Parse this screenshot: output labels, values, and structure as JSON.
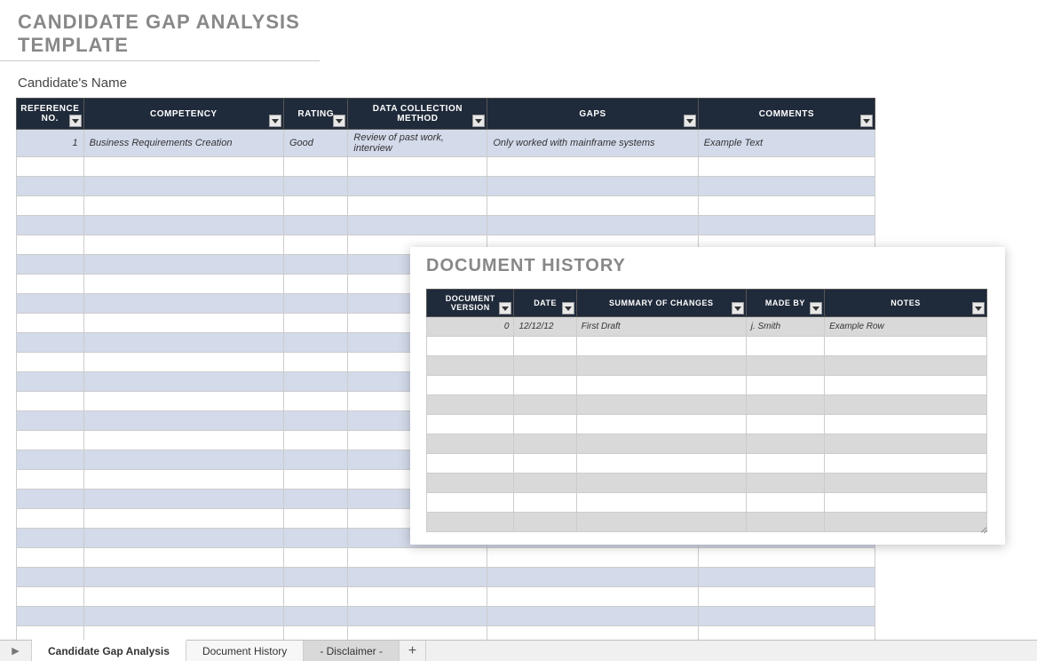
{
  "page": {
    "title": "CANDIDATE GAP ANALYSIS TEMPLATE",
    "subtitle": "Candidate's Name"
  },
  "mainTable": {
    "headers": {
      "ref": "REFERENCE NO.",
      "competency": "COMPETENCY",
      "rating": "RATING",
      "method": "DATA COLLECTION METHOD",
      "gaps": "GAPS",
      "comments": "COMMENTS"
    },
    "rows": [
      {
        "ref": "1",
        "competency": "Business Requirements Creation",
        "rating": "Good",
        "method": "Review of past work, interview",
        "gaps": "Only worked with mainframe systems",
        "comments": "Example Text"
      }
    ],
    "emptyRowCount": 25,
    "colors": {
      "headerBg": "#1f2a3a",
      "headerText": "#ffffff",
      "altRowBg": "#d3daea",
      "border": "#cccccc"
    }
  },
  "historyPanel": {
    "title": "DOCUMENT HISTORY",
    "headers": {
      "version": "DOCUMENT VERSION",
      "date": "DATE",
      "summary": "SUMMARY OF CHANGES",
      "madeBy": "MADE BY",
      "notes": "NOTES"
    },
    "rows": [
      {
        "version": "0",
        "date": "12/12/12",
        "summary": "First Draft",
        "madeBy": "j. Smith",
        "notes": "Example Row"
      }
    ],
    "emptyRowCount": 10,
    "colors": {
      "headerBg": "#1f2a3a",
      "altRowBg": "#d9d9d9"
    }
  },
  "sheetTabs": {
    "tabs": [
      {
        "label": "Candidate Gap Analysis",
        "state": "active"
      },
      {
        "label": "Document History",
        "state": "normal"
      },
      {
        "label": "- Disclaimer -",
        "state": "shaded"
      }
    ],
    "addLabel": "+"
  }
}
